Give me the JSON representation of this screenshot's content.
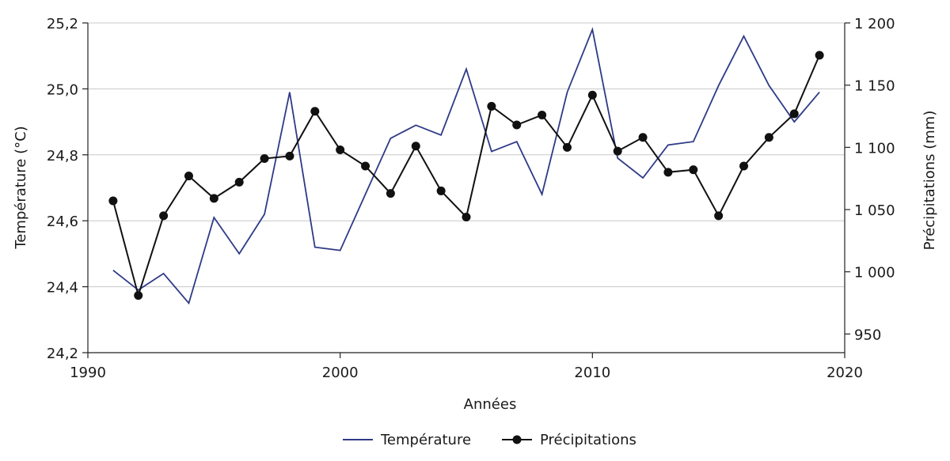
{
  "chart_data": {
    "type": "line",
    "xlabel": "Années",
    "ylabel_left": "Température (°C)",
    "ylabel_right": "Précipitations (mm)",
    "xlim": [
      1990,
      2020
    ],
    "ylim_left": [
      24.2,
      25.2
    ],
    "ylim_right": [
      935,
      1200
    ],
    "x_ticks": [
      "1990",
      "2000",
      "2010",
      "2020"
    ],
    "x_tick_values": [
      1990,
      2000,
      2010,
      2020
    ],
    "y_left_ticks": [
      "24,2",
      "24,4",
      "24,6",
      "24,8",
      "25,0",
      "25,2"
    ],
    "y_left_tick_values": [
      24.2,
      24.4,
      24.6,
      24.8,
      25.0,
      25.2
    ],
    "y_right_ticks": [
      "950",
      "1 000",
      "1 050",
      "1 100",
      "1 150",
      "1 200"
    ],
    "y_right_tick_values": [
      950,
      1000,
      1050,
      1100,
      1150,
      1200
    ],
    "grid": "horizontal",
    "legend_position": "bottom-center",
    "x": [
      1991,
      1992,
      1993,
      1994,
      1995,
      1996,
      1997,
      1998,
      1999,
      2000,
      2001,
      2002,
      2003,
      2004,
      2005,
      2006,
      2007,
      2008,
      2009,
      2010,
      2011,
      2012,
      2013,
      2014,
      2015,
      2016,
      2017,
      2018,
      2019
    ],
    "series": [
      {
        "name": "Température",
        "axis": "left",
        "color": "#2e3a87",
        "values": [
          24.45,
          24.39,
          24.44,
          24.35,
          24.61,
          24.5,
          24.62,
          24.99,
          24.52,
          24.51,
          24.68,
          24.85,
          24.89,
          24.86,
          25.06,
          24.81,
          24.84,
          24.68,
          24.99,
          25.18,
          24.79,
          24.73,
          24.83,
          24.84,
          25.01,
          25.16,
          25.01,
          24.9,
          24.99
        ]
      },
      {
        "name": "Précipitations",
        "axis": "right",
        "color": "#111111",
        "values": [
          1057,
          981,
          1045,
          1077,
          1059,
          1072,
          1091,
          1093,
          1129,
          1098,
          1085,
          1063,
          1101,
          1065,
          1044,
          1133,
          1118,
          1126,
          1100,
          1142,
          1097,
          1108,
          1080,
          1082,
          1045,
          1085,
          1108,
          1127,
          1174
        ]
      }
    ]
  }
}
